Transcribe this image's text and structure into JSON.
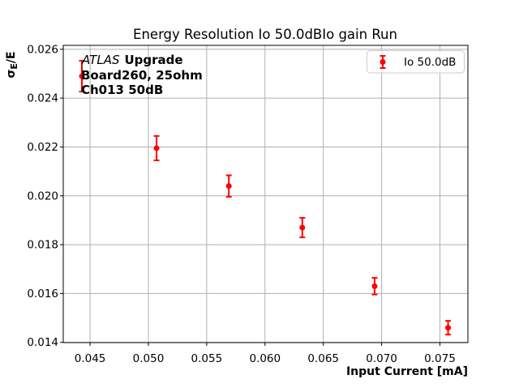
{
  "window": {
    "title": "Energy Resolution Io 50.0dBIo gain Run"
  },
  "figure": {
    "background": "#ffffff",
    "annotation": {
      "line1_italic": "ATLAS",
      "line1_bold": "Upgrade",
      "line2": "Board260, 25ohm",
      "line3": "Ch013 50dB"
    },
    "legend": {
      "label": "Io 50.0dB",
      "marker": "red-errorbar-icon",
      "marker_color": "#ff0000",
      "border_color": "#cccccc"
    },
    "ylabel_parts": {
      "sigma": "σ",
      "subscript": "E",
      "rest": "/E"
    }
  },
  "chart_data": {
    "type": "scatter",
    "title": "Energy Resolution Io 50.0dBIo gain Run",
    "xlabel": "Input Current [mA]",
    "ylabel": "σ_E/E",
    "xlim": [
      0.0427,
      0.0774
    ],
    "ylim": [
      0.01399,
      0.02616
    ],
    "xticks": [
      0.045,
      0.05,
      0.055,
      0.06,
      0.065,
      0.07,
      0.075
    ],
    "xtick_labels": [
      "0.045",
      "0.050",
      "0.055",
      "0.060",
      "0.065",
      "0.070",
      "0.075"
    ],
    "yticks": [
      0.014,
      0.016,
      0.018,
      0.02,
      0.022,
      0.024,
      0.026
    ],
    "ytick_labels": [
      "0.014",
      "0.016",
      "0.018",
      "0.020",
      "0.022",
      "0.024",
      "0.026"
    ],
    "grid": true,
    "grid_color": "#b0b0b0",
    "spine_color": "#000000",
    "legend_position": "upper right",
    "series": [
      {
        "name": "Io 50.0dB",
        "color": "#ff0000",
        "marker": "circle-with-errorbar",
        "x": [
          0.0443,
          0.0507,
          0.0569,
          0.0632,
          0.0694,
          0.0757
        ],
        "y": [
          0.0249,
          0.02195,
          0.0204,
          0.0187,
          0.0163,
          0.0146
        ],
        "yerr": [
          0.00063,
          0.0005,
          0.00044,
          0.0004,
          0.00034,
          0.00028
        ]
      }
    ]
  }
}
